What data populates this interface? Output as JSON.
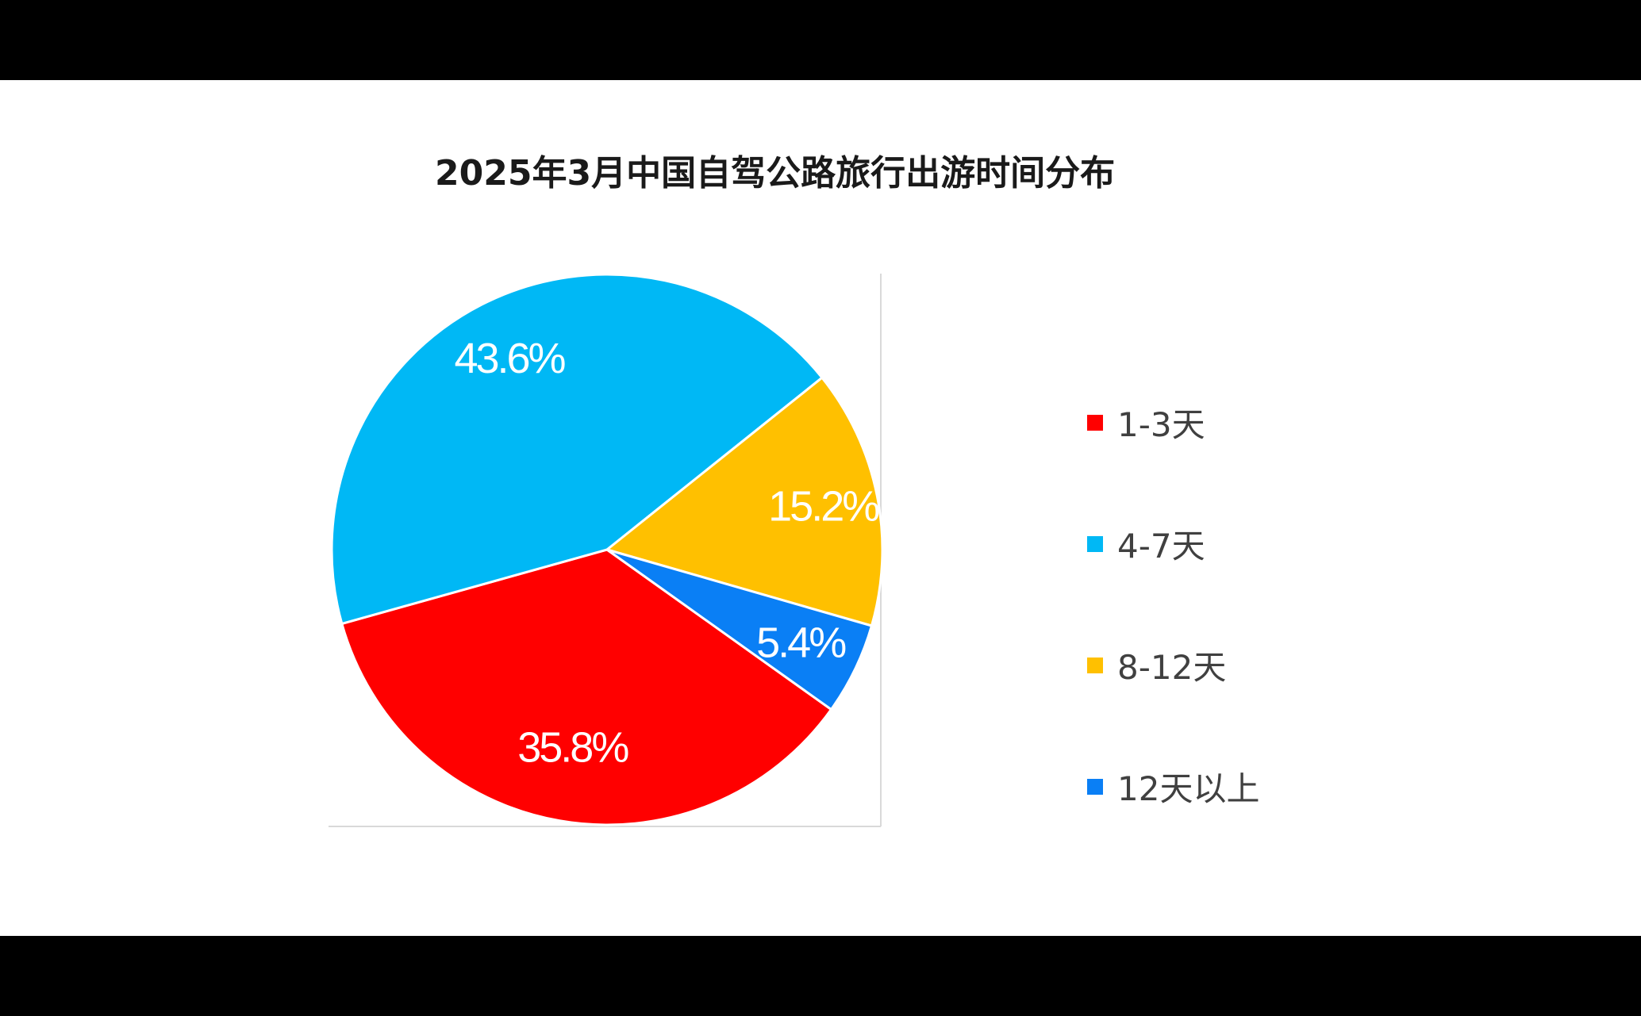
{
  "chart_data": {
    "type": "pie",
    "title": "2025年3月中国自驾公路旅行出游时间分布",
    "legend_position": "right",
    "slices": [
      {
        "label": "1-3天",
        "value": 35.8,
        "display": "35.8%",
        "color": "#ff0000"
      },
      {
        "label": "4-7天",
        "value": 43.6,
        "display": "43.6%",
        "color": "#00b8f5"
      },
      {
        "label": "8-12天",
        "value": 15.2,
        "display": "15.2%",
        "color": "#ffc000"
      },
      {
        "label": "12天以上",
        "value": 5.4,
        "display": "5.4%",
        "color": "#0a7ff5"
      }
    ]
  }
}
